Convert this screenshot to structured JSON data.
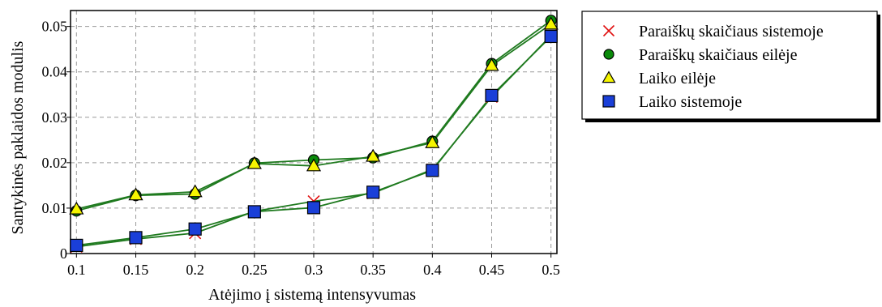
{
  "chart_data": {
    "type": "line",
    "xlabel": "Atėjimo į sistemą intensyvumas",
    "ylabel": "Santykinės paklaidos modulis",
    "x": [
      0.1,
      0.15,
      0.2,
      0.25,
      0.3,
      0.35,
      0.4,
      0.45,
      0.5
    ],
    "x_tick_labels": [
      "0.1",
      "0.15",
      "0.2",
      "0.25",
      "0.3",
      "0.35",
      "0.4",
      "0.45",
      "0.5"
    ],
    "y_ticks": [
      0,
      0.01,
      0.02,
      0.03,
      0.04,
      0.05
    ],
    "y_tick_labels": [
      "0",
      "0.01",
      "0.02",
      "0.03",
      "0.04",
      "0.05"
    ],
    "xlim": [
      0.095,
      0.505
    ],
    "ylim": [
      0,
      0.0535
    ],
    "grid": true,
    "legend_position": "right",
    "line_color": "#1f7a1f",
    "series": [
      {
        "name": "Paraiškų skaičiaus sistemoje",
        "marker": "x",
        "color": "#e01010",
        "values": [
          0.0015,
          0.0032,
          0.0045,
          0.0093,
          0.0115,
          0.0133,
          0.0185,
          0.0345,
          0.048
        ]
      },
      {
        "name": "Paraiškų skaičiaus eilėje",
        "marker": "circle",
        "color": "#0a8a0a",
        "values": [
          0.0094,
          0.0128,
          0.0131,
          0.0199,
          0.0206,
          0.0211,
          0.0247,
          0.0418,
          0.0513
        ]
      },
      {
        "name": "Laiko eilėje",
        "marker": "triangle",
        "color": "#f5f500",
        "values": [
          0.0098,
          0.0129,
          0.0136,
          0.0198,
          0.0193,
          0.0214,
          0.0244,
          0.0414,
          0.0505
        ]
      },
      {
        "name": "Laiko sistemoje",
        "marker": "square",
        "color": "#1a3fd8",
        "values": [
          0.0018,
          0.0035,
          0.0054,
          0.0092,
          0.0101,
          0.0135,
          0.0183,
          0.0348,
          0.0478
        ]
      }
    ]
  }
}
